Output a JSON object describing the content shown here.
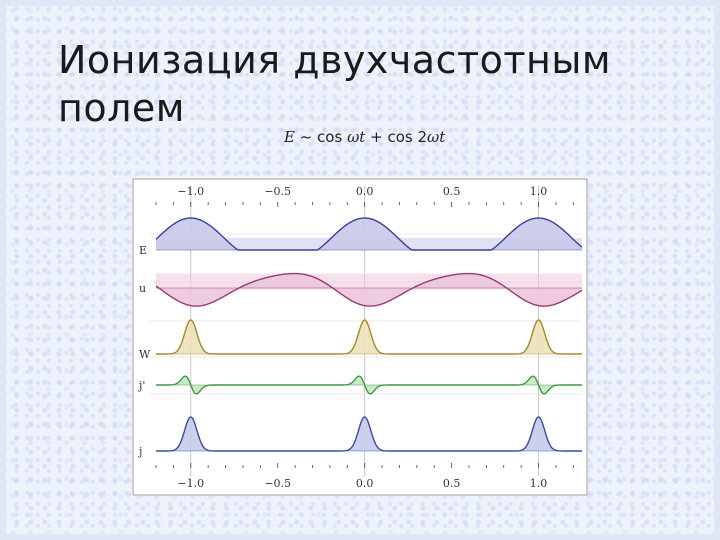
{
  "slide": {
    "title_line1": "Ионизация двухчастотным",
    "title_line2": "полем"
  },
  "formula": {
    "lhs": "E",
    "op": " ~ cos ",
    "t1": "ωt",
    "plus": " + cos 2",
    "t2": "ωt"
  },
  "chart_data": {
    "type": "line",
    "x_ticks": [
      -1.0,
      -0.5,
      0.0,
      0.5,
      1.0
    ],
    "x_tick_labels": [
      "−1.0",
      "−0.5",
      "0.0",
      "0.5",
      "1.0"
    ],
    "xlim": [
      -1.2,
      1.25
    ],
    "rows": [
      {
        "label": "E",
        "color": "#3a3f9a",
        "fill": "#c9c9ea"
      },
      {
        "label": "u",
        "color": "#9a3a74",
        "fill": "#ecc6dc"
      },
      {
        "label": "W",
        "color": "#a28a2c",
        "fill": "#ece1b8"
      },
      {
        "label": "j'",
        "color": "#3f9a3f",
        "fill": "#c4e6c4"
      },
      {
        "label": "j",
        "color": "#3a4aa0",
        "fill": "#c6cbea"
      }
    ],
    "peaks_x": [
      -1.0,
      0.0,
      1.0
    ]
  }
}
